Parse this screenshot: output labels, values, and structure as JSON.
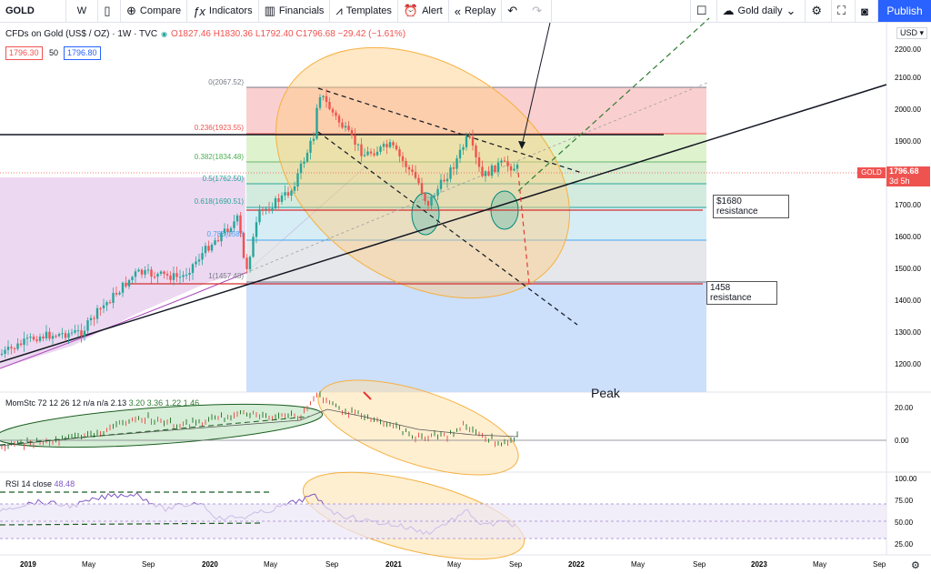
{
  "toolbar": {
    "symbol": "GOLD",
    "interval": "W",
    "compare": "Compare",
    "indicators": "Indicators",
    "financials": "Financials",
    "templates": "Templates",
    "alert": "Alert",
    "replay": "Replay",
    "layout_name": "Gold daily",
    "publish": "Publish"
  },
  "legend": {
    "title": "CFDs on Gold (US$ / OZ) · 1W · TVC",
    "ohlc": "O1827.46 H1830.36 L1792.40 C1796.68 −29.42 (−1.61%)",
    "bid": "1796.30",
    "spread": "50",
    "ask": "1796.80"
  },
  "currency": "USD",
  "price_axis": [
    "2200.00",
    "2100.00",
    "2000.00",
    "1900.00",
    "1800.00",
    "1700.00",
    "1600.00",
    "1500.00",
    "1400.00",
    "1300.00",
    "1200.00"
  ],
  "current_price": {
    "symbol": "GOLD",
    "price": "1796.68",
    "countdown": "3d 5h"
  },
  "fib_levels": [
    {
      "label": "0(2067.52)"
    },
    {
      "label": "0.236(1923.55)"
    },
    {
      "label": "0.382(1834.48)"
    },
    {
      "label": "0.5(1762.50)"
    },
    {
      "label": "0.618(1690.51)"
    },
    {
      "label": "0.786(1588"
    },
    {
      "label": "1(1457.48)"
    }
  ],
  "annotations": {
    "res1_line1": "$1680",
    "res1_line2": "resistance",
    "res2_line1": "1458",
    "res2_line2": "resistance",
    "peak": "Peak"
  },
  "momentum": {
    "legend": "MomStc 72 12 26 12  n/a n/a 2.13",
    "values": "3.20 3.36 1.22 1.46",
    "axis": [
      "20.00",
      "0.00"
    ]
  },
  "rsi": {
    "legend": "RSI 14 close",
    "value": "48.48",
    "axis": [
      "100.00",
      "75.00",
      "50.00",
      "25.00"
    ]
  },
  "time_axis": [
    "2019",
    "May",
    "Sep",
    "2020",
    "May",
    "Sep",
    "2021",
    "May",
    "Sep",
    "2022",
    "May",
    "Sep",
    "2023",
    "May",
    "Sep"
  ],
  "colors": {
    "up": "#26a69a",
    "down": "#ef5350",
    "accent": "#2962ff"
  }
}
